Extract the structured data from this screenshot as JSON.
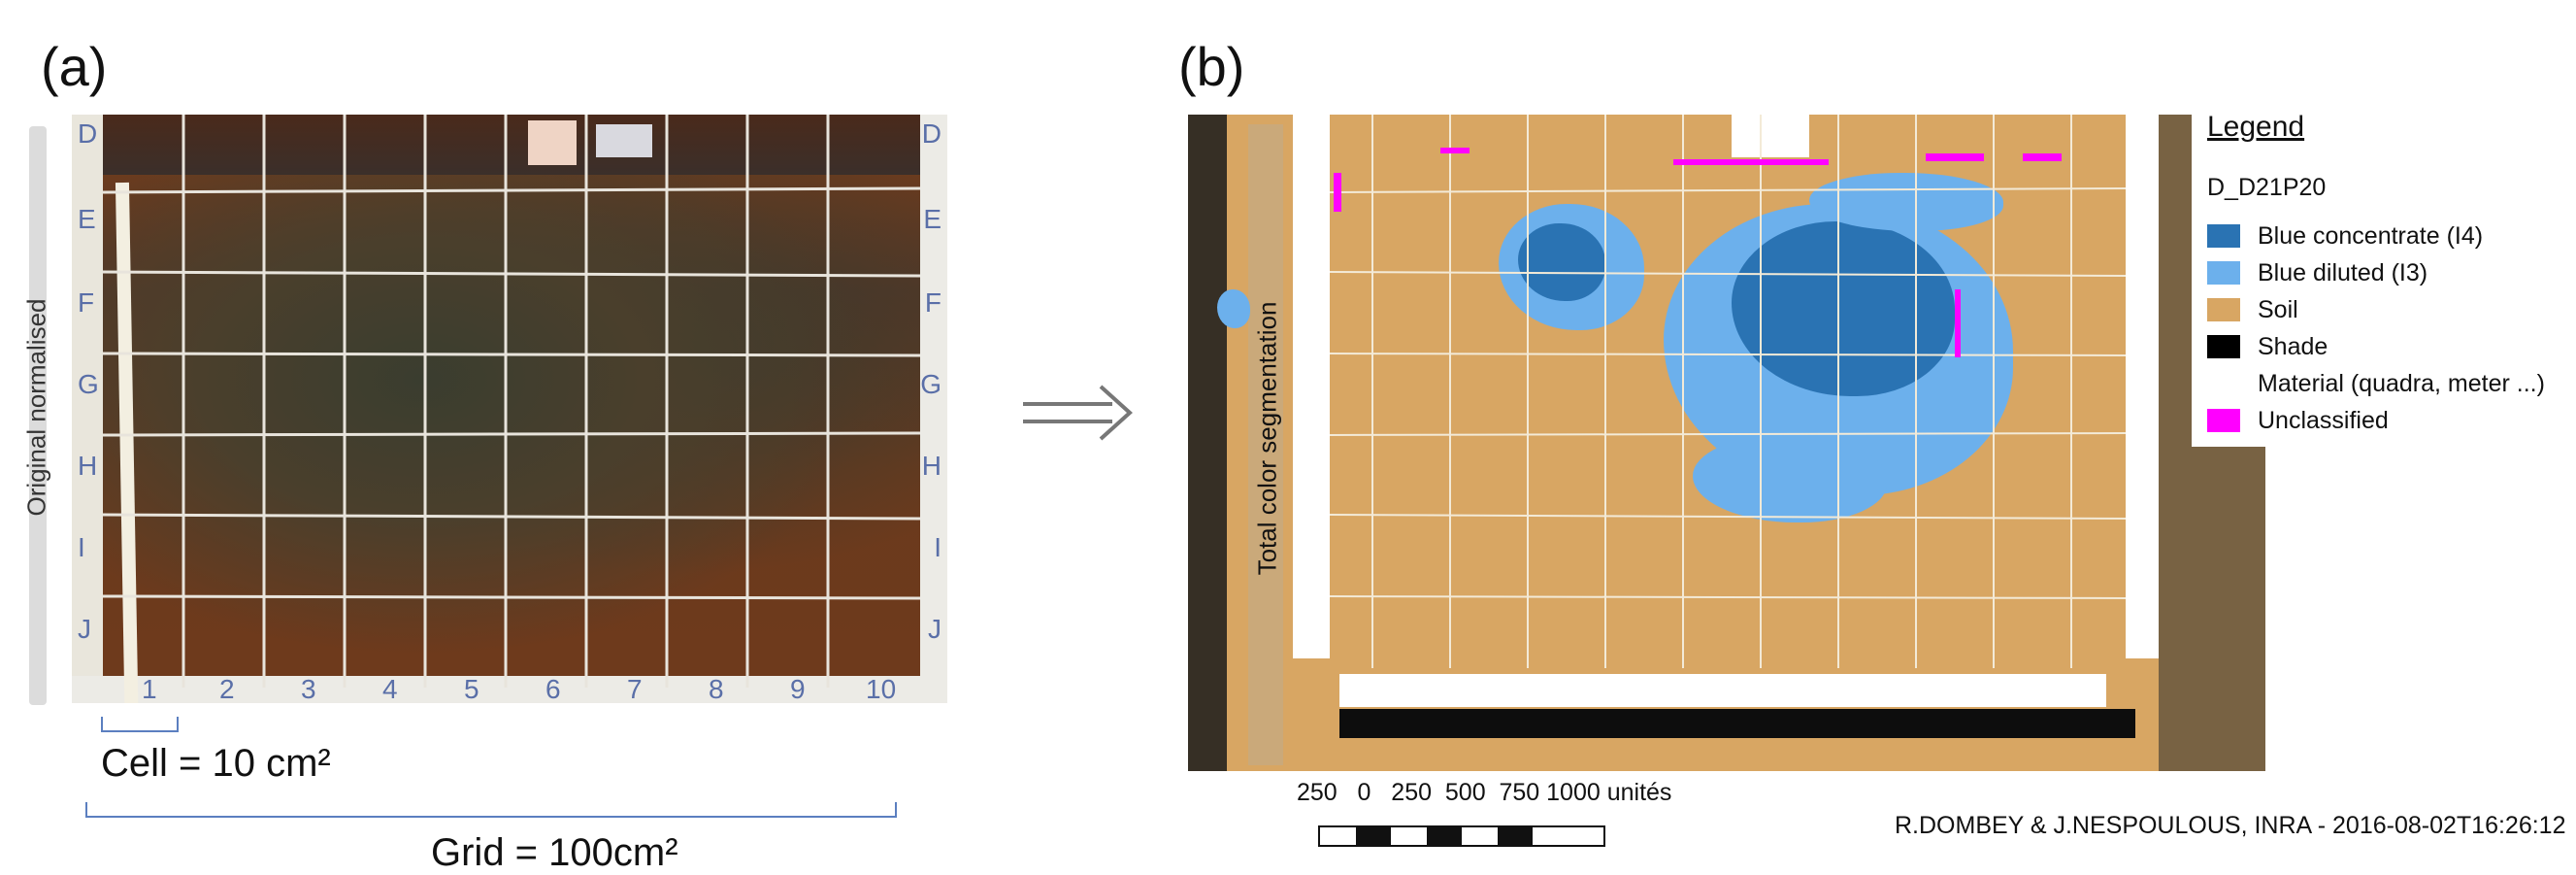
{
  "panel_a": {
    "label": "(a)",
    "side_label": "Original normalised",
    "row_letters": [
      "D",
      "E",
      "F",
      "G",
      "H",
      "I",
      "J"
    ],
    "column_numbers": [
      "1",
      "2",
      "3",
      "4",
      "5",
      "6",
      "7",
      "8",
      "9",
      "10"
    ],
    "cell_caption": "Cell = 10 cm²",
    "grid_caption": "Grid = 100cm²"
  },
  "panel_b": {
    "label": "(b)",
    "side_label": "Total color segmentation",
    "legend": {
      "title": "Legend",
      "layer": "D_D21P20",
      "items": [
        {
          "label": "Blue concentrate (I4)",
          "color": "#2a73b3"
        },
        {
          "label": "Blue diluted (I3)",
          "color": "#6cb0ec"
        },
        {
          "label": "Soil",
          "color": "#d8a663"
        },
        {
          "label": "Shade",
          "color": "#000000"
        },
        {
          "label": "Material (quadra, meter ...)",
          "color": "#ffffff"
        },
        {
          "label": "Unclassified",
          "color": "#ff00ff"
        }
      ]
    },
    "scale_labels": "250   0   250  500  750 1000 unités",
    "credit": "R.DOMBEY & J.NESPOULOUS, INRA - 2016-08-02T16:26:12"
  },
  "arrow_icon": "double-right-arrow-icon"
}
